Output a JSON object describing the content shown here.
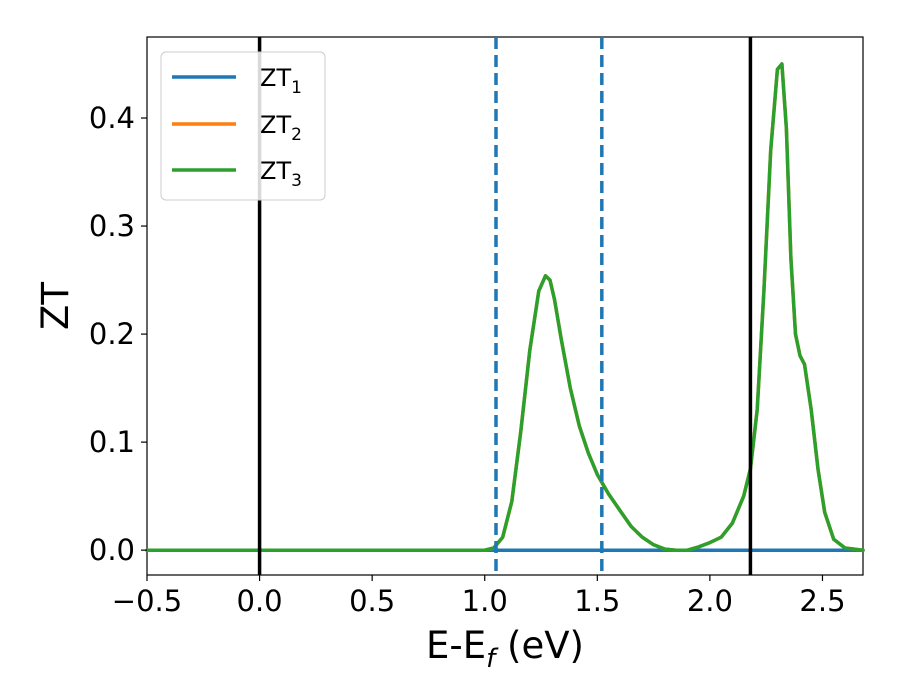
{
  "chart_data": {
    "type": "line",
    "xlabel": {
      "main": "E-E",
      "sub": "f",
      "tail": " (eV)"
    },
    "ylabel": "ZT",
    "xlim": [
      -0.5,
      2.68
    ],
    "ylim": [
      -0.023,
      0.475
    ],
    "xticks": [
      -0.5,
      0.0,
      0.5,
      1.0,
      1.5,
      2.0,
      2.5
    ],
    "xtick_labels": [
      "−0.5",
      "0.0",
      "0.5",
      "1.0",
      "1.5",
      "2.0",
      "2.5"
    ],
    "yticks": [
      0.0,
      0.1,
      0.2,
      0.3,
      0.4
    ],
    "ytick_labels": [
      "0.0",
      "0.1",
      "0.2",
      "0.3",
      "0.4"
    ],
    "grid": false,
    "legend_position": "top-left",
    "series": [
      {
        "name_main": "ZT",
        "name_sub": "1",
        "color": "#1f77b4",
        "x": [
          -0.5,
          2.68
        ],
        "y": [
          0.0,
          0.0
        ]
      },
      {
        "name_main": "ZT",
        "name_sub": "2",
        "color": "#ff7f0e",
        "x": [
          -0.5,
          1.0,
          1.04,
          1.08,
          1.12,
          1.16,
          1.2,
          1.24,
          1.27,
          1.29,
          1.31,
          1.34,
          1.38,
          1.42,
          1.46,
          1.5,
          1.55,
          1.6,
          1.65,
          1.7,
          1.75,
          1.8,
          1.85,
          1.9,
          1.95,
          2.0,
          2.05,
          2.1,
          2.15,
          2.18,
          2.21,
          2.24,
          2.27,
          2.3,
          2.32,
          2.34,
          2.36,
          2.38,
          2.4,
          2.42,
          2.45,
          2.48,
          2.51,
          2.55,
          2.6,
          2.68
        ],
        "y": [
          0.0,
          0.0,
          0.002,
          0.012,
          0.045,
          0.11,
          0.185,
          0.24,
          0.254,
          0.25,
          0.232,
          0.195,
          0.15,
          0.115,
          0.09,
          0.07,
          0.052,
          0.037,
          0.022,
          0.012,
          0.005,
          0.001,
          0.0,
          0.0,
          0.003,
          0.007,
          0.012,
          0.025,
          0.05,
          0.075,
          0.13,
          0.24,
          0.37,
          0.445,
          0.45,
          0.39,
          0.27,
          0.2,
          0.18,
          0.172,
          0.13,
          0.075,
          0.035,
          0.01,
          0.002,
          0.0
        ]
      },
      {
        "name_main": "ZT",
        "name_sub": "3",
        "color": "#2ca02c",
        "x": [
          -0.5,
          1.0,
          1.04,
          1.08,
          1.12,
          1.16,
          1.2,
          1.24,
          1.27,
          1.29,
          1.31,
          1.34,
          1.38,
          1.42,
          1.46,
          1.5,
          1.55,
          1.6,
          1.65,
          1.7,
          1.75,
          1.8,
          1.85,
          1.9,
          1.95,
          2.0,
          2.05,
          2.1,
          2.15,
          2.18,
          2.21,
          2.24,
          2.27,
          2.3,
          2.32,
          2.34,
          2.36,
          2.38,
          2.4,
          2.42,
          2.45,
          2.48,
          2.51,
          2.55,
          2.6,
          2.68
        ],
        "y": [
          0.0,
          0.0,
          0.002,
          0.012,
          0.045,
          0.11,
          0.185,
          0.24,
          0.254,
          0.25,
          0.232,
          0.195,
          0.15,
          0.115,
          0.09,
          0.07,
          0.052,
          0.037,
          0.022,
          0.012,
          0.005,
          0.001,
          0.0,
          0.0,
          0.003,
          0.007,
          0.012,
          0.025,
          0.05,
          0.075,
          0.13,
          0.24,
          0.37,
          0.445,
          0.45,
          0.39,
          0.27,
          0.2,
          0.18,
          0.172,
          0.13,
          0.075,
          0.035,
          0.01,
          0.002,
          0.0
        ]
      }
    ],
    "vlines": [
      {
        "x": 0.0,
        "color": "#000000",
        "style": "solid"
      },
      {
        "x": 2.18,
        "color": "#000000",
        "style": "solid"
      },
      {
        "x": 1.05,
        "color": "#1f77b4",
        "style": "dashed"
      },
      {
        "x": 1.52,
        "color": "#1f77b4",
        "style": "dashed"
      }
    ]
  }
}
